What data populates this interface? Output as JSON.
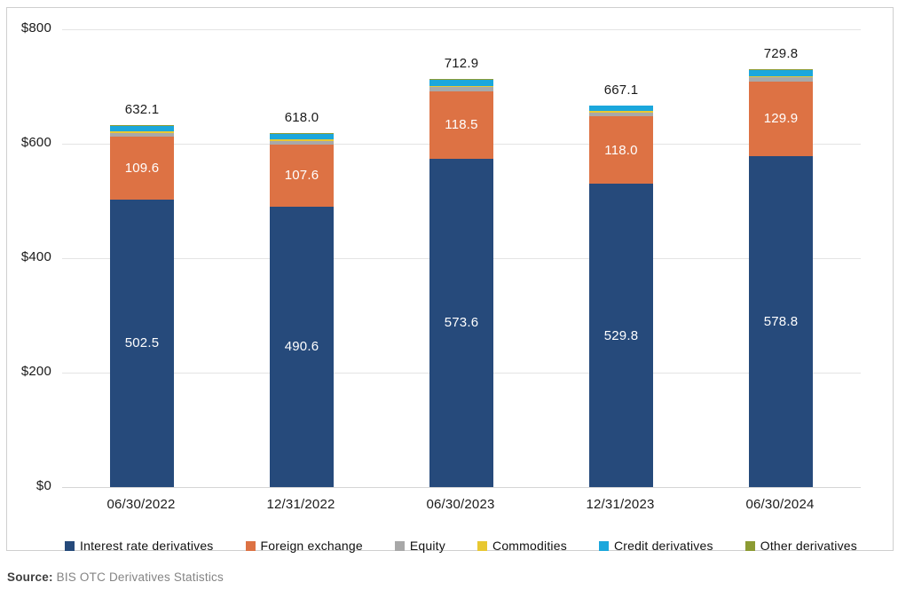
{
  "chart_data": {
    "type": "bar",
    "subtype": "stacked",
    "title": "",
    "categories": [
      "06/30/2022",
      "12/31/2022",
      "06/30/2023",
      "12/31/2023",
      "06/30/2024"
    ],
    "series": [
      {
        "name": "Interest rate derivatives",
        "color": "#264a7b",
        "values": [
          502.5,
          490.6,
          573.6,
          529.8,
          578.8
        ],
        "show_labels": true
      },
      {
        "name": "Foreign exchange",
        "color": "#dd7244",
        "values": [
          109.6,
          107.6,
          118.5,
          118.0,
          129.9
        ],
        "show_labels": true
      },
      {
        "name": "Equity",
        "color": "#a8a8a8",
        "values": [
          7.1,
          7.0,
          7.0,
          6.9,
          7.3
        ],
        "show_labels": false
      },
      {
        "name": "Commodities",
        "color": "#e8c832",
        "values": [
          2.3,
          2.2,
          2.4,
          2.0,
          2.2
        ],
        "show_labels": false
      },
      {
        "name": "Credit derivatives",
        "color": "#1ba7dc",
        "values": [
          9.7,
          9.7,
          10.3,
          9.5,
          10.5
        ],
        "show_labels": false
      },
      {
        "name": "Other derivatives",
        "color": "#8c9b33",
        "values": [
          0.9,
          0.9,
          1.1,
          0.9,
          1.1
        ],
        "show_labels": false
      }
    ],
    "totals": [
      632.1,
      618.0,
      712.9,
      667.1,
      729.8
    ],
    "y_ticks": [
      {
        "value": 0,
        "label": "$0"
      },
      {
        "value": 200,
        "label": "$200"
      },
      {
        "value": 400,
        "label": "$400"
      },
      {
        "value": 600,
        "label": "$600"
      },
      {
        "value": 800,
        "label": "$800"
      }
    ],
    "ylim": [
      0,
      800
    ],
    "grid": true,
    "legend_position": "bottom"
  },
  "source": {
    "label": "Source:",
    "text": " BIS OTC Derivatives Statistics"
  }
}
